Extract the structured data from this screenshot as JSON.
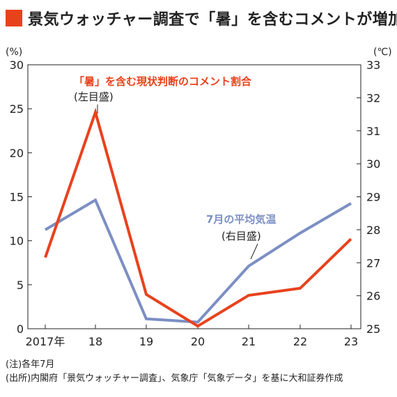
{
  "title": "景気ウォッチャー調査で「暑」を含むコメントが増加",
  "colors": {
    "accent": "#e8421d",
    "temp": "#7c8fc4"
  },
  "chart_data": {
    "type": "line",
    "categories": [
      "2017年",
      "18",
      "19",
      "20",
      "21",
      "22",
      "23"
    ],
    "left_axis": {
      "unit": "(%)",
      "ylim": [
        0,
        30
      ],
      "ticks": [
        "0",
        "5",
        "10",
        "15",
        "20",
        "25",
        "30"
      ]
    },
    "right_axis": {
      "unit": "(℃)",
      "ylim": [
        25,
        33
      ],
      "ticks": [
        "25",
        "26",
        "27",
        "28",
        "29",
        "30",
        "31",
        "32",
        "33"
      ]
    },
    "series": [
      {
        "name": "「暑」を含む現状判断のコメント割合",
        "axis_note": "(左目盛)",
        "axis": "left",
        "color": "#e8421d",
        "values": [
          8.1,
          24.6,
          3.9,
          0.3,
          3.8,
          4.6,
          10.2
        ]
      },
      {
        "name": "7月の平均気温",
        "axis_note": "(右目盛)",
        "axis": "right",
        "color": "#7c8fc4",
        "values": [
          28.0,
          28.9,
          25.3,
          25.2,
          26.9,
          27.9,
          28.8
        ]
      }
    ]
  },
  "notes": [
    "(注)各年7月",
    "(出所)内閣府「景気ウォッチャー調査」、気象庁「気象データ」を基に大和証券作成"
  ]
}
